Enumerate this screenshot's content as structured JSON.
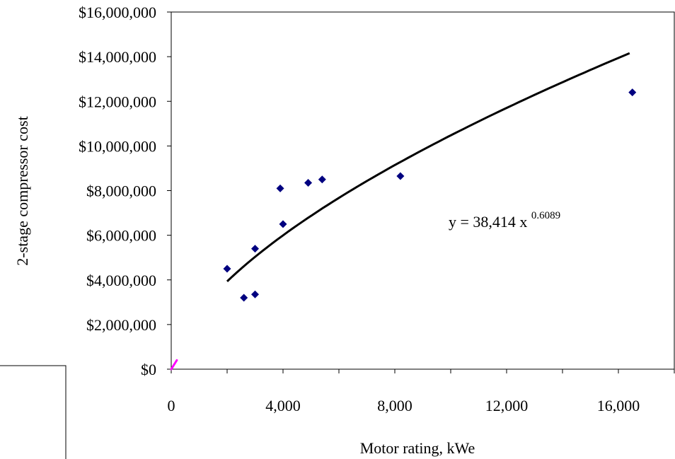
{
  "chart_data": {
    "type": "scatter",
    "title": "",
    "xlabel": "Motor rating, kWe",
    "ylabel": "2-stage compressor cost",
    "xlim": [
      0,
      18000
    ],
    "ylim": [
      0,
      16000000
    ],
    "x_ticks": [
      0,
      4000,
      8000,
      12000,
      16000
    ],
    "x_tick_labels": [
      "0",
      "4,000",
      "8,000",
      "12,000",
      "16,000"
    ],
    "y_ticks": [
      0,
      2000000,
      4000000,
      6000000,
      8000000,
      10000000,
      12000000,
      14000000,
      16000000
    ],
    "y_tick_labels": [
      "$0",
      "$2,000,000",
      "$4,000,000",
      "$6,000,000",
      "$8,000,000",
      "$10,000,000",
      "$12,000,000",
      "$14,000,000",
      "$16,000,000"
    ],
    "grid": false,
    "legend": "none",
    "series": [
      {
        "marker": "diamond",
        "color": "#000080",
        "points": [
          [
            2000,
            4500000
          ],
          [
            2600,
            3200000
          ],
          [
            3000,
            3350000
          ],
          [
            3000,
            5400000
          ],
          [
            3900,
            8100000
          ],
          [
            4000,
            6500000
          ],
          [
            4900,
            8350000
          ],
          [
            5400,
            8500000
          ],
          [
            8200,
            8650000
          ],
          [
            16500,
            12400000
          ]
        ]
      },
      {
        "marker": "line",
        "color": "#ff00ff",
        "points": [
          [
            0,
            0
          ],
          [
            200,
            400000
          ]
        ]
      }
    ],
    "trendline": {
      "type": "power",
      "coefficient": 38414,
      "exponent": 0.6089,
      "x_range": [
        2000,
        16400
      ],
      "color": "#000000"
    },
    "annotation": {
      "prefix": "y = ",
      "coefficient_text": "38,414",
      "variable": " x ",
      "exponent_text": "0.6089"
    }
  }
}
